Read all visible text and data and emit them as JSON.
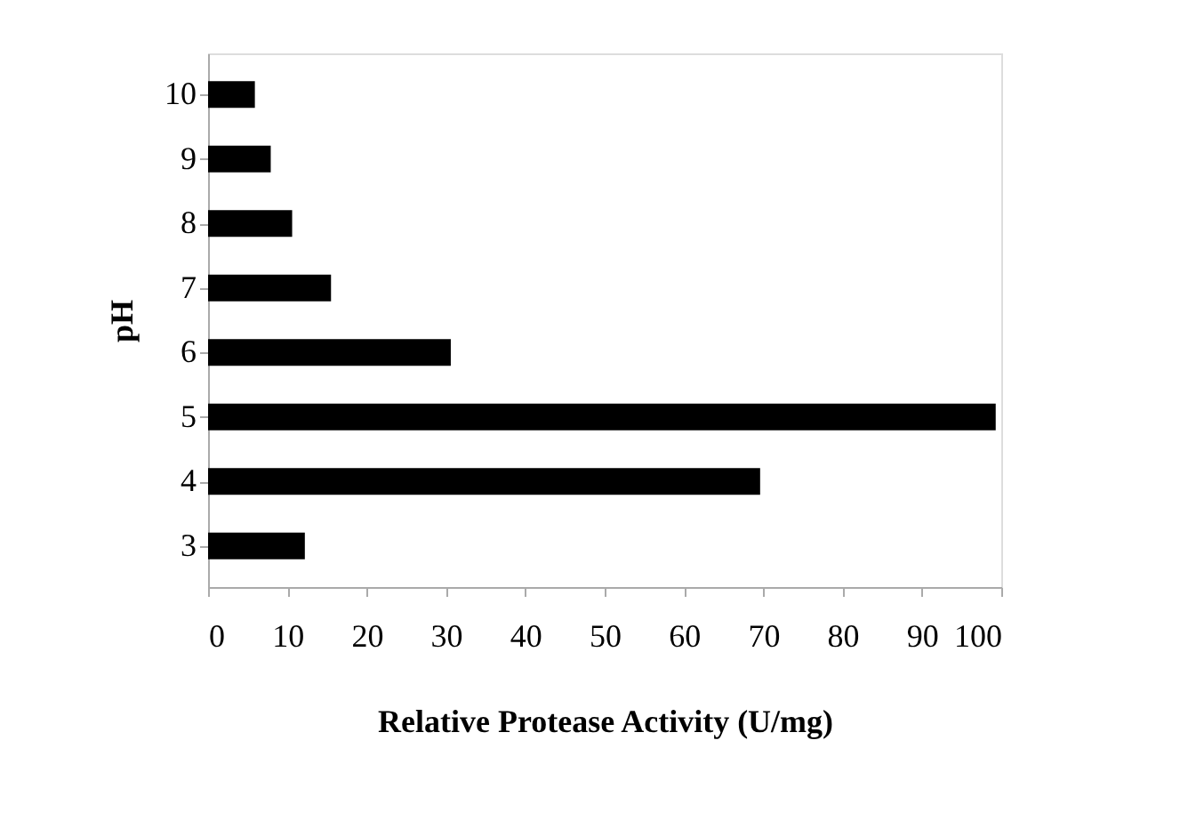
{
  "chart_data": {
    "type": "bar",
    "orientation": "horizontal",
    "xlabel": "Relative Protease Activity (U/mg)",
    "ylabel": "pH",
    "categories": [
      "10",
      "9",
      "8",
      "7",
      "6",
      "5",
      "4",
      "3"
    ],
    "values": [
      5.9,
      7.9,
      10.6,
      15.5,
      30.6,
      99.3,
      69.6,
      12.2
    ],
    "color": "#000000",
    "xlim": [
      0,
      100
    ],
    "xticks": [
      0,
      10,
      20,
      30,
      40,
      50,
      60,
      70,
      80,
      90,
      100
    ],
    "grid": false
  }
}
